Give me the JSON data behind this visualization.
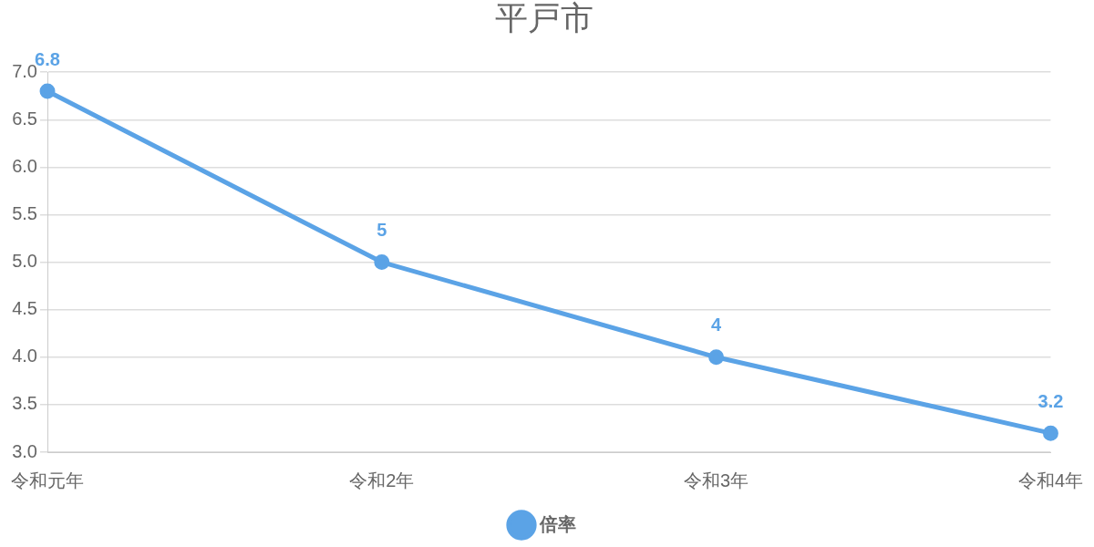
{
  "chart_data": {
    "type": "line",
    "title": "平戸市",
    "categories": [
      "令和元年",
      "令和2年",
      "令和3年",
      "令和4年"
    ],
    "series": [
      {
        "name": "倍率",
        "color": "#5ba3e6",
        "values": [
          6.8,
          5,
          4,
          3.2
        ]
      }
    ],
    "ylim": [
      3,
      7
    ],
    "yticks": [
      {
        "value": 3,
        "label": "3.0"
      },
      {
        "value": 3.5,
        "label": "3.5"
      },
      {
        "value": 4,
        "label": "4.0"
      },
      {
        "value": 4.5,
        "label": "4.5"
      },
      {
        "value": 5,
        "label": "5.0"
      },
      {
        "value": 5.5,
        "label": "5.5"
      },
      {
        "value": 6,
        "label": "6.0"
      },
      {
        "value": 6.5,
        "label": "6.5"
      },
      {
        "value": 7,
        "label": "7.0"
      }
    ],
    "grid": "y",
    "legend": "bottom",
    "marker": "circle",
    "line_style": "solid",
    "data_labels": true
  }
}
